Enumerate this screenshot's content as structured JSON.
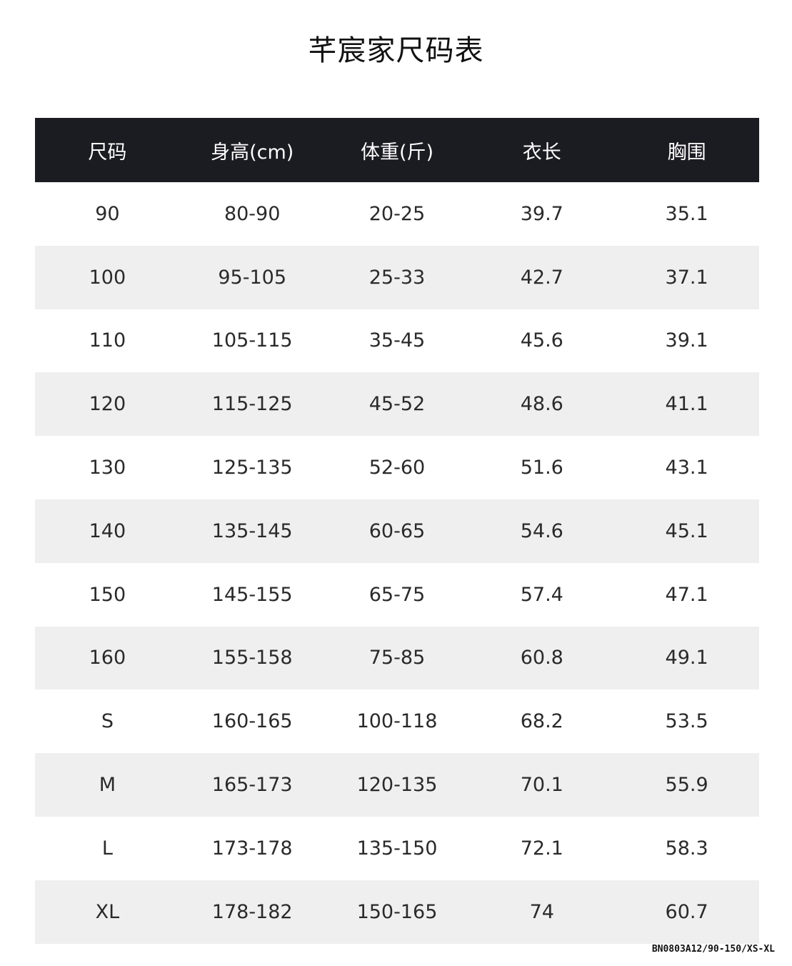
{
  "title": "芊宸家尺码表",
  "headers": [
    "尺码",
    "身高(cm)",
    "体重(斤)",
    "衣长",
    "胸围"
  ],
  "rows": [
    [
      "90",
      "80-90",
      "20-25",
      "39.7",
      "35.1"
    ],
    [
      "100",
      "95-105",
      "25-33",
      "42.7",
      "37.1"
    ],
    [
      "110",
      "105-115",
      "35-45",
      "45.6",
      "39.1"
    ],
    [
      "120",
      "115-125",
      "45-52",
      "48.6",
      "41.1"
    ],
    [
      "130",
      "125-135",
      "52-60",
      "51.6",
      "43.1"
    ],
    [
      "140",
      "135-145",
      "60-65",
      "54.6",
      "45.1"
    ],
    [
      "150",
      "145-155",
      "65-75",
      "57.4",
      "47.1"
    ],
    [
      "160",
      "155-158",
      "75-85",
      "60.8",
      "49.1"
    ],
    [
      "S",
      "160-165",
      "100-118",
      "68.2",
      "53.5"
    ],
    [
      "M",
      "165-173",
      "120-135",
      "70.1",
      "55.9"
    ],
    [
      "L",
      "173-178",
      "135-150",
      "72.1",
      "58.3"
    ],
    [
      "XL",
      "178-182",
      "150-165",
      "74",
      "60.7"
    ]
  ],
  "footer_code": "BN0803A12/90-150/XS-XL",
  "colors": {
    "header_bg": "#1b1b22",
    "stripe": "#efefef"
  }
}
